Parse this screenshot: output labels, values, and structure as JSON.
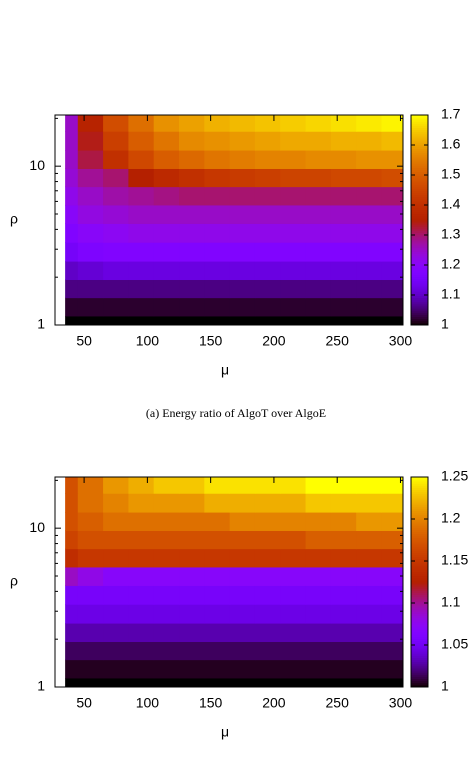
{
  "chart_data": [
    {
      "type": "heatmap",
      "xlabel": "μ",
      "ylabel": "ρ",
      "log_y": true,
      "colormap": "gnuplot",
      "x": [
        35,
        55,
        75,
        95,
        115,
        135,
        155,
        175,
        195,
        215,
        235,
        255,
        275,
        295
      ],
      "y": [
        1,
        1.3,
        1.7,
        2.2,
        2.9,
        3.8,
        5,
        6.5,
        8.5,
        11,
        14.5,
        19
      ],
      "z": [
        [
          1,
          1,
          1,
          1,
          1,
          1,
          1,
          1,
          1,
          1,
          1,
          1,
          1,
          1
        ],
        [
          1.02,
          1.02,
          1.02,
          1.02,
          1.02,
          1.02,
          1.02,
          1.02,
          1.02,
          1.02,
          1.02,
          1.02,
          1.02,
          1.02
        ],
        [
          1.06,
          1.06,
          1.06,
          1.06,
          1.06,
          1.06,
          1.06,
          1.06,
          1.06,
          1.06,
          1.06,
          1.06,
          1.06,
          1.06
        ],
        [
          1.1,
          1.11,
          1.12,
          1.12,
          1.12,
          1.12,
          1.12,
          1.12,
          1.12,
          1.12,
          1.12,
          1.12,
          1.12,
          1.12
        ],
        [
          1.15,
          1.17,
          1.18,
          1.18,
          1.18,
          1.18,
          1.18,
          1.18,
          1.18,
          1.18,
          1.18,
          1.18,
          1.18,
          1.18
        ],
        [
          1.18,
          1.2,
          1.21,
          1.22,
          1.22,
          1.22,
          1.22,
          1.22,
          1.22,
          1.22,
          1.22,
          1.22,
          1.22,
          1.22
        ],
        [
          1.2,
          1.23,
          1.24,
          1.25,
          1.25,
          1.25,
          1.25,
          1.25,
          1.25,
          1.25,
          1.25,
          1.25,
          1.25,
          1.25
        ],
        [
          1.22,
          1.25,
          1.27,
          1.28,
          1.29,
          1.3,
          1.3,
          1.3,
          1.3,
          1.3,
          1.3,
          1.3,
          1.3,
          1.3
        ],
        [
          1.24,
          1.28,
          1.3,
          1.35,
          1.38,
          1.4,
          1.42,
          1.43,
          1.44,
          1.45,
          1.45,
          1.46,
          1.46,
          1.47
        ],
        [
          1.25,
          1.32,
          1.4,
          1.46,
          1.5,
          1.52,
          1.54,
          1.55,
          1.56,
          1.56,
          1.57,
          1.57,
          1.58,
          1.58
        ],
        [
          1.25,
          1.34,
          1.44,
          1.5,
          1.54,
          1.57,
          1.58,
          1.59,
          1.6,
          1.61,
          1.61,
          1.62,
          1.62,
          1.63
        ],
        [
          1.25,
          1.36,
          1.47,
          1.53,
          1.58,
          1.6,
          1.62,
          1.63,
          1.64,
          1.65,
          1.66,
          1.67,
          1.68,
          1.69
        ]
      ],
      "xlim": [
        27,
        302
      ],
      "xticks": [
        50,
        100,
        150,
        200,
        250,
        300
      ],
      "ylim": [
        1,
        21
      ],
      "yticks": [
        1,
        10
      ],
      "yminor": [
        2,
        3,
        4,
        5,
        6,
        7,
        8,
        9,
        20
      ],
      "zlim": [
        1,
        1.7
      ],
      "zticks": [
        1,
        1.1,
        1.2,
        1.3,
        1.4,
        1.5,
        1.6,
        1.7
      ]
    },
    {
      "type": "heatmap",
      "xlabel": "μ",
      "ylabel": "ρ",
      "log_y": true,
      "colormap": "gnuplot",
      "x": [
        35,
        55,
        75,
        95,
        115,
        135,
        155,
        175,
        195,
        215,
        235,
        255,
        275,
        295
      ],
      "y": [
        1,
        1.3,
        1.7,
        2.2,
        2.9,
        3.8,
        5,
        6.5,
        8.5,
        11,
        14.5,
        19
      ],
      "z": [
        [
          1,
          1,
          1,
          1,
          1,
          1,
          1,
          1,
          1,
          1,
          1,
          1,
          1,
          1
        ],
        [
          1.005,
          1.005,
          1.005,
          1.005,
          1.005,
          1.005,
          1.005,
          1.005,
          1.005,
          1.005,
          1.005,
          1.005,
          1.005,
          1.005
        ],
        [
          1.015,
          1.015,
          1.015,
          1.015,
          1.015,
          1.015,
          1.015,
          1.015,
          1.015,
          1.015,
          1.015,
          1.015,
          1.015,
          1.015
        ],
        [
          1.03,
          1.03,
          1.03,
          1.03,
          1.03,
          1.03,
          1.03,
          1.03,
          1.03,
          1.03,
          1.03,
          1.03,
          1.03,
          1.03
        ],
        [
          1.045,
          1.045,
          1.045,
          1.045,
          1.045,
          1.045,
          1.045,
          1.045,
          1.045,
          1.045,
          1.045,
          1.045,
          1.045,
          1.045
        ],
        [
          1.055,
          1.055,
          1.055,
          1.055,
          1.055,
          1.055,
          1.055,
          1.055,
          1.055,
          1.055,
          1.055,
          1.055,
          1.055,
          1.055
        ],
        [
          1.09,
          1.08,
          1.07,
          1.07,
          1.07,
          1.07,
          1.07,
          1.07,
          1.07,
          1.07,
          1.07,
          1.07,
          1.07,
          1.07
        ],
        [
          1.14,
          1.15,
          1.15,
          1.15,
          1.15,
          1.15,
          1.15,
          1.15,
          1.15,
          1.15,
          1.15,
          1.15,
          1.15,
          1.15
        ],
        [
          1.16,
          1.17,
          1.17,
          1.17,
          1.17,
          1.17,
          1.17,
          1.17,
          1.17,
          1.17,
          1.18,
          1.18,
          1.18,
          1.18
        ],
        [
          1.17,
          1.18,
          1.19,
          1.19,
          1.19,
          1.19,
          1.19,
          1.2,
          1.2,
          1.2,
          1.2,
          1.2,
          1.21,
          1.21
        ],
        [
          1.17,
          1.19,
          1.2,
          1.21,
          1.21,
          1.21,
          1.22,
          1.22,
          1.22,
          1.22,
          1.23,
          1.23,
          1.23,
          1.23
        ],
        [
          1.17,
          1.19,
          1.21,
          1.22,
          1.23,
          1.23,
          1.24,
          1.24,
          1.24,
          1.24,
          1.25,
          1.25,
          1.25,
          1.25
        ]
      ],
      "xlim": [
        27,
        302
      ],
      "xticks": [
        50,
        100,
        150,
        200,
        250,
        300
      ],
      "ylim": [
        1,
        21
      ],
      "yticks": [
        1,
        10
      ],
      "yminor": [
        2,
        3,
        4,
        5,
        6,
        7,
        8,
        9,
        20
      ],
      "zlim": [
        1,
        1.25
      ],
      "zticks": [
        1,
        1.05,
        1.1,
        1.15,
        1.2,
        1.25
      ]
    }
  ],
  "caption": "(a) Energy ratio of AlgoT over AlgoE"
}
